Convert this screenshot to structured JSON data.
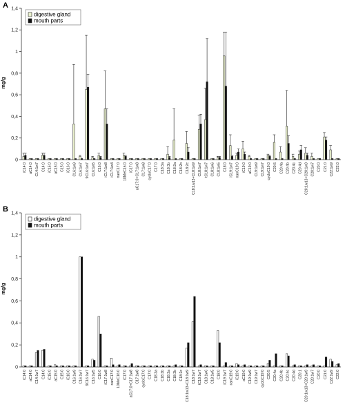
{
  "chart_data": [
    {
      "panel": "A",
      "type": "bar",
      "ylabel": "mg/g",
      "ylim": [
        0,
        1.4
      ],
      "yticks": [
        "0",
        "0,2",
        "0,4",
        "0,6",
        "0,8",
        "1",
        "1,2",
        "1,4"
      ],
      "legend_position": "top-left",
      "error_bars": true,
      "categories": [
        "iC14:0",
        "aC14:0",
        "C14:1w7",
        "C14:0",
        "iC15:0",
        "aC15:0",
        "C15:0",
        "iC16:0",
        "C16:1w9",
        "C16:1w7",
        "9C16:1w7",
        "C16:1w5",
        "C16:0",
        "iC17:1w8",
        "iC17:1w4",
        "nanC17:0",
        "10MeC16:0",
        "iC17:0",
        "aC17:0+C17:1w8",
        "C17:1w8",
        "cycloC17:0",
        "C17:0",
        "C18:3a",
        "C18:3b",
        "C18:2a",
        "C18:2b",
        "C18:2c",
        "C18:1w13+C18:1w9",
        "C18:1w7",
        "tC18:1w7",
        "C18:1w6",
        "C18:1w5",
        "C18:0",
        "iC19:1w7",
        "nanC19:0",
        "iC19:0",
        "aC19:0",
        "C19:1w9",
        "C19:1w7",
        "cycloC19:0",
        "C20:5",
        "C20:4a",
        "C20:4b",
        "C20:4c",
        "C20:4d",
        "C20:1w13+C20:1w9",
        "C20:1w7",
        "C20:0",
        "C21:0",
        "C22:1w9",
        "C22:0"
      ],
      "series": [
        {
          "name": "digestive gland",
          "color": "#e9f0cc",
          "values": [
            0.03,
            0.01,
            0.01,
            0.04,
            0.01,
            0.01,
            0.01,
            0.01,
            0.33,
            0.03,
            0.65,
            0.02,
            0.04,
            0.47,
            0.01,
            0.01,
            0.04,
            0.01,
            0.01,
            0.01,
            0.01,
            0.01,
            0.01,
            0.05,
            0.18,
            0.01,
            0.15,
            0.01,
            0.28,
            0.37,
            0.01,
            0.02,
            0.96,
            0.13,
            0.04,
            0.1,
            0.03,
            0.01,
            0.01,
            0.04,
            0.16,
            0.07,
            0.31,
            0.03,
            0.05,
            0.06,
            0.03,
            0.01,
            0.21,
            0.09,
            0.01
          ],
          "errors": [
            0.03,
            0.01,
            0.005,
            0.02,
            0.005,
            0.005,
            0.005,
            0.005,
            0.55,
            0.01,
            0.5,
            0.01,
            0.02,
            0.35,
            0.005,
            0.005,
            0.02,
            0.005,
            0.005,
            0.005,
            0.005,
            0.005,
            0.005,
            0.07,
            0.29,
            0.005,
            0.11,
            0.005,
            0.13,
            0.29,
            0.005,
            0.01,
            0.22,
            0.1,
            0.02,
            0.07,
            0.01,
            0.005,
            0.005,
            0.01,
            0.07,
            0.05,
            0.33,
            0.02,
            0.03,
            0.05,
            0.03,
            0.005,
            0.04,
            0.04,
            0.005
          ]
        },
        {
          "name": "mouth parts",
          "color": "#111111",
          "values": [
            0.04,
            0.01,
            0.01,
            0.04,
            0.01,
            0.01,
            0.01,
            0.01,
            0.01,
            0.01,
            0.67,
            0.01,
            0.02,
            0.33,
            0.01,
            0.01,
            0.03,
            0.01,
            0.01,
            0.01,
            0.01,
            0.01,
            0.01,
            0.02,
            0.01,
            0.01,
            0.07,
            0.01,
            0.33,
            0.72,
            0.01,
            0.02,
            0.68,
            0.03,
            0.07,
            0.05,
            0.01,
            0.01,
            0.01,
            0.03,
            0.01,
            0.01,
            0.15,
            0.01,
            0.09,
            0.04,
            0.01,
            0.01,
            0.18,
            0.01,
            0.01
          ],
          "errors": [
            0.02,
            0.005,
            0.005,
            0.02,
            0.005,
            0.005,
            0.005,
            0.005,
            0.005,
            0.005,
            0.12,
            0.005,
            0.01,
            0.14,
            0.005,
            0.005,
            0.01,
            0.005,
            0.005,
            0.005,
            0.005,
            0.005,
            0.005,
            0.01,
            0.005,
            0.005,
            0.04,
            0.005,
            0.09,
            0.4,
            0.005,
            0.01,
            0.5,
            0.01,
            0.03,
            0.02,
            0.005,
            0.005,
            0.005,
            0.01,
            0.005,
            0.005,
            0.07,
            0.005,
            0.04,
            0.02,
            0.005,
            0.005,
            0.03,
            0.005,
            0.005
          ]
        }
      ]
    },
    {
      "panel": "B",
      "type": "bar",
      "ylabel": "mg/g",
      "ylim": [
        0,
        1.4
      ],
      "yticks": [
        "0",
        "0,2",
        "0,4",
        "0,6",
        "0,8",
        "1",
        "1,2",
        "1,4"
      ],
      "legend_position": "top-left",
      "error_bars": false,
      "categories": [
        "iC14:0",
        "aC14:0",
        "C14:1w7",
        "C14:0",
        "iC15:0",
        "aC15:0",
        "C15:0",
        "iC16:0",
        "C16:1w9",
        "C16:1w7",
        "9C16:1w7",
        "C16:1w5",
        "C16:0",
        "iC17:1w8",
        "nanC17:0",
        "10MeC16:0",
        "iC17:0",
        "aC17:0+C17:1w8",
        "C17:1w8",
        "cycloC17:0",
        "C17:0",
        "C18:3a",
        "C18:3b",
        "C18:2a",
        "C18:2b",
        "C18:2c",
        "C18:1w13+C18:1w9",
        "C18:1w7",
        "tC18:1w7",
        "C18:1w6",
        "C18:1w5",
        "C18:0",
        "iC19:1w7",
        "nanC19:0",
        "iC19:0",
        "aC19:0",
        "C19:1w9",
        "C19:1w7",
        "cycloC19:0",
        "C20:5",
        "C20:4a",
        "C20:4b",
        "C20:4c",
        "C20:4d",
        "C20:1",
        "C20:1w13+C20:1w9",
        "C20:1w7",
        "C20:0",
        "C21:0",
        "C22:1w9",
        "C22:0"
      ],
      "series": [
        {
          "name": "digestive gland",
          "color": "#ffffff",
          "values": [
            0.01,
            0.01,
            0.13,
            0.15,
            0.01,
            0.02,
            0.01,
            0.01,
            0.01,
            1.0,
            0.01,
            0.07,
            0.46,
            0.01,
            0.08,
            0.01,
            0.01,
            0.01,
            0.01,
            0.01,
            0.01,
            0.01,
            0.01,
            0.01,
            0.01,
            0.01,
            0.17,
            0.41,
            0.01,
            0.01,
            0.01,
            0.33,
            0.01,
            0.01,
            0.03,
            0.01,
            0.01,
            0.01,
            0.01,
            0.03,
            0.01,
            0.01,
            0.12,
            0.01,
            0.01,
            0.01,
            0.01,
            0.01,
            0.01,
            0.07,
            0.02
          ],
          "errors": []
        },
        {
          "name": "mouth parts",
          "color": "#111111",
          "values": [
            0.01,
            0.01,
            0.15,
            0.16,
            0.01,
            0.01,
            0.01,
            0.01,
            0.01,
            1.0,
            0.01,
            0.06,
            0.3,
            0.01,
            0.02,
            0.02,
            0.01,
            0.03,
            0.01,
            0.01,
            0.01,
            0.01,
            0.01,
            0.01,
            0.02,
            0.01,
            0.22,
            0.64,
            0.02,
            0.01,
            0.01,
            0.22,
            0.04,
            0.01,
            0.02,
            0.02,
            0.01,
            0.01,
            0.01,
            0.06,
            0.12,
            0.01,
            0.1,
            0.02,
            0.01,
            0.02,
            0.02,
            0.01,
            0.09,
            0.05,
            0.03
          ],
          "errors": []
        }
      ]
    }
  ]
}
